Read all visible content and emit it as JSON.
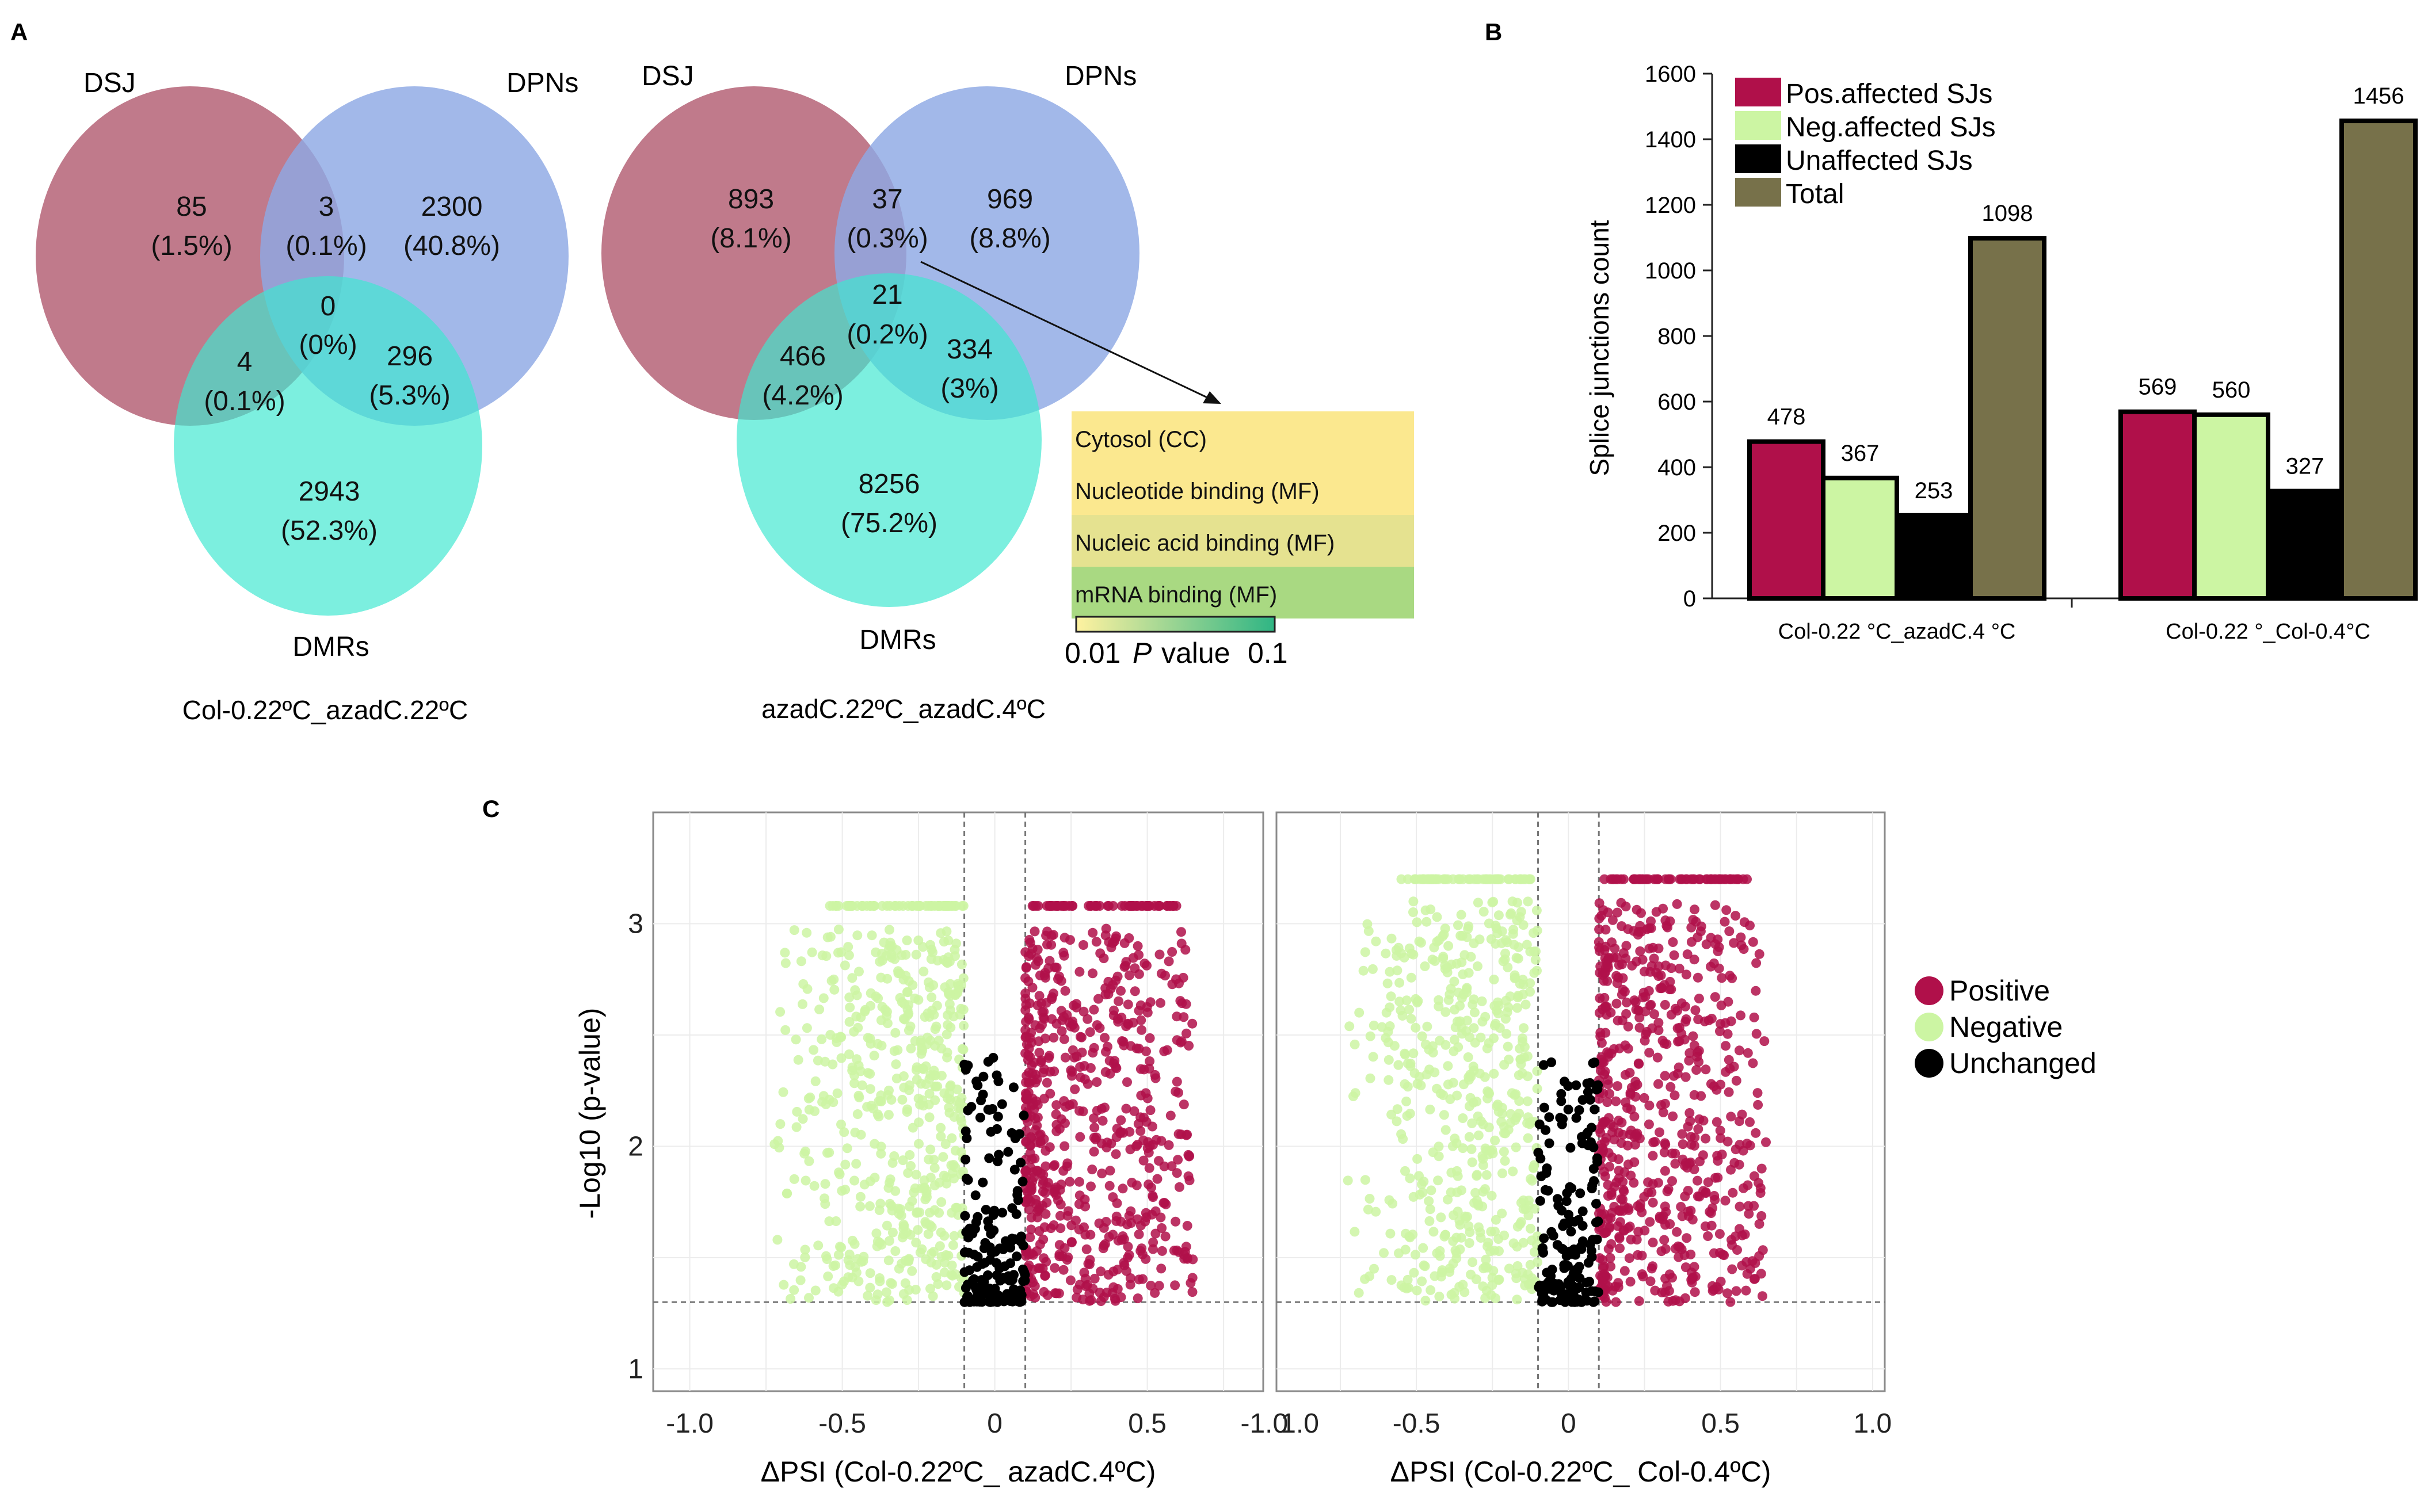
{
  "panel_labels": {
    "a": "A",
    "b": "B",
    "c": "C"
  },
  "venn1": {
    "label_dsj": "DSJ",
    "label_dpn": "DPNs",
    "label_dmr": "DMRs",
    "caption": "Col-0.22ºC_azadC.22ºC",
    "dsj_only": [
      "85",
      "(1.5%)"
    ],
    "dsj_dpn": [
      "3",
      "(0.1%)"
    ],
    "dpn_only": [
      "2300",
      "(40.8%)"
    ],
    "center": [
      "0",
      "(0%)"
    ],
    "dsj_dmr": [
      "4",
      "(0.1%)"
    ],
    "dpn_dmr": [
      "296",
      "(5.3%)"
    ],
    "dmr_only": [
      "2943",
      "(52.3%)"
    ]
  },
  "venn2": {
    "label_dsj": "DSJ",
    "label_dpn": "DPNs",
    "label_dmr": "DMRs",
    "caption": "azadC.22ºC_azadC.4ºC",
    "dsj_only": [
      "893",
      "(8.1%)"
    ],
    "dsj_dpn": [
      "37",
      "(0.3%)"
    ],
    "dpn_only": [
      "969",
      "(8.8%)"
    ],
    "center": [
      "21",
      "(0.2%)"
    ],
    "dsj_dmr": [
      "466",
      "(4.2%)"
    ],
    "dpn_dmr": [
      "334",
      "(3%)"
    ],
    "dmr_only": [
      "8256",
      "(75.2%)"
    ]
  },
  "go_table": {
    "terms": [
      {
        "label": "Cytosol (CC)",
        "color": "#fbe88f"
      },
      {
        "label": "Nucleotide binding (MF)",
        "color": "#fbe88f"
      },
      {
        "label": "Nucleic acid binding (MF)",
        "color": "#e5e290"
      },
      {
        "label": "mRNA binding (MF)",
        "color": "#a9d982"
      }
    ],
    "legend_low": "0.01",
    "legend_p": "P",
    "legend_value": "value",
    "legend_high": "0.1",
    "gradient_start": "#fff2a0",
    "gradient_end": "#2fb584"
  },
  "chart_data": [
    {
      "type": "bar",
      "title": "",
      "ylabel": "Splice junctions count",
      "xlabel": "",
      "ylim": [
        0,
        1600
      ],
      "yticks": [
        "0",
        "200",
        "400",
        "600",
        "800",
        "1000",
        "1200",
        "1400",
        "1600"
      ],
      "categories": [
        "Col-0.22 °C_azadC.4 °C",
        "Col-0.22 °_Col-0.4°C"
      ],
      "series": [
        {
          "name": "Pos.affected SJs",
          "color": "#b0104a",
          "values": [
            478,
            569
          ]
        },
        {
          "name": "Neg.affected SJs",
          "color": "#ccf5a3",
          "values": [
            367,
            560
          ]
        },
        {
          "name": "Unaffected SJs",
          "color": "#000000",
          "values": [
            253,
            327
          ]
        },
        {
          "name": "Total",
          "color": "#77714a",
          "values": [
            1098,
            1456
          ]
        }
      ],
      "value_labels": [
        [
          "478",
          "367",
          "253",
          "1098"
        ],
        [
          "569",
          "560",
          "327",
          "1456"
        ]
      ],
      "legend": "top-left"
    },
    {
      "type": "scatter",
      "subtype": "volcano",
      "panels": [
        {
          "xlabel": "ΔPSI (Col-0.22ºC_ azadC.4ºC)"
        },
        {
          "xlabel": "ΔPSI (Col-0.22ºC_ Col-0.4ºC)"
        }
      ],
      "ylabel": "-Log10 (p-value)",
      "xlim": [
        -1.0,
        1.0
      ],
      "ylim": [
        0.9,
        3.5
      ],
      "xticks": [
        "-1.0",
        "-0.5",
        "0",
        "0.5",
        "1.0"
      ],
      "yticks": [
        "1",
        "2",
        "3"
      ],
      "threshold_x": [
        -0.1,
        0.1
      ],
      "threshold_y": 1.3,
      "legend": [
        {
          "name": "Positive",
          "color": "#b0104a"
        },
        {
          "name": "Negative",
          "color": "#ccf5a3"
        },
        {
          "name": "Unchanged",
          "color": "#000000"
        }
      ],
      "x_range_positive": [
        0.1,
        0.65
      ],
      "x_range_negative": [
        -0.75,
        -0.1
      ],
      "y_range": [
        1.3,
        3.2
      ]
    }
  ]
}
